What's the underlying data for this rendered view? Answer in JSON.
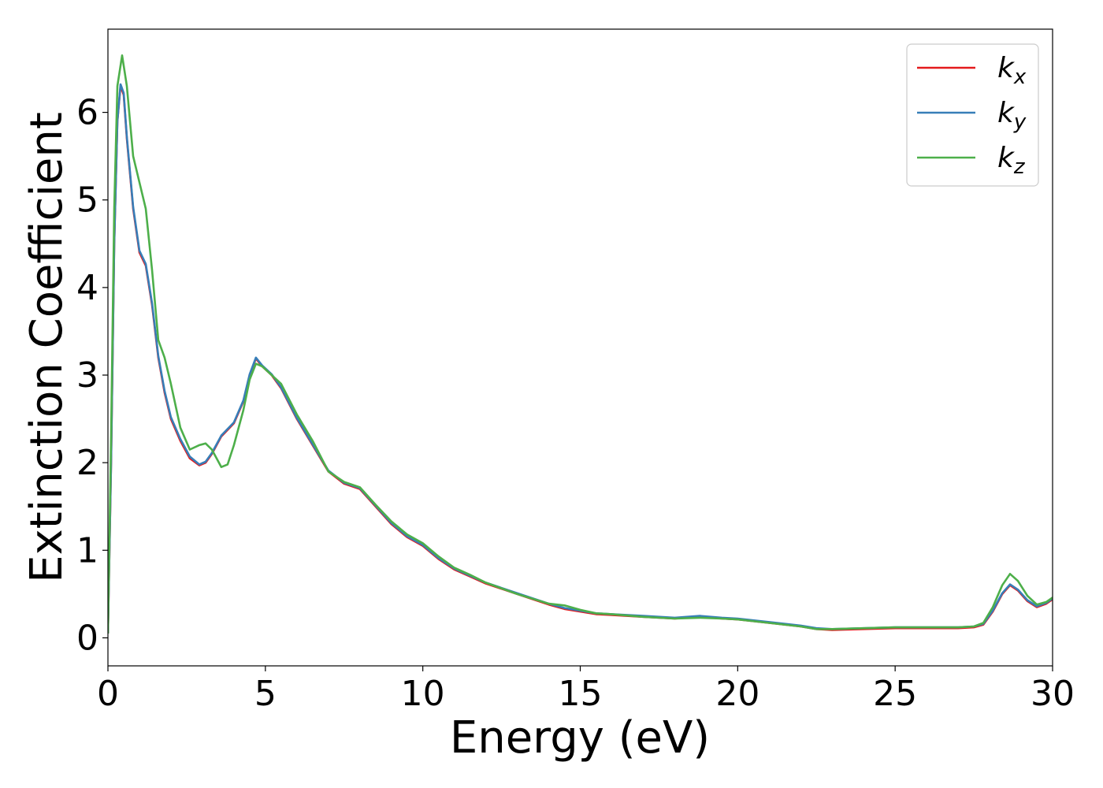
{
  "chart_data": {
    "type": "line",
    "title": "",
    "xlabel": "Energy (eV)",
    "ylabel": "Extinction Coefficient",
    "xlim": [
      0,
      30
    ],
    "ylim": [
      -0.32,
      6.95
    ],
    "xticks": [
      0,
      5,
      10,
      15,
      20,
      25,
      30
    ],
    "yticks": [
      0,
      1,
      2,
      3,
      4,
      5,
      6
    ],
    "xtick_labels": [
      "0",
      "5",
      "10",
      "15",
      "20",
      "25",
      "30"
    ],
    "ytick_labels": [
      "0",
      "1",
      "2",
      "3",
      "4",
      "5",
      "6"
    ],
    "grid": false,
    "legend_position": "top-right",
    "series": [
      {
        "name": "k_x",
        "label_main": "k",
        "label_sub": "x",
        "color": "#e41a1c",
        "points": [
          [
            0,
            0.05
          ],
          [
            0.1,
            2.0
          ],
          [
            0.2,
            4.5
          ],
          [
            0.3,
            5.9
          ],
          [
            0.4,
            6.3
          ],
          [
            0.5,
            6.2
          ],
          [
            0.6,
            5.7
          ],
          [
            0.8,
            4.9
          ],
          [
            1.0,
            4.4
          ],
          [
            1.2,
            4.25
          ],
          [
            1.4,
            3.8
          ],
          [
            1.6,
            3.2
          ],
          [
            1.8,
            2.8
          ],
          [
            2.0,
            2.5
          ],
          [
            2.3,
            2.25
          ],
          [
            2.6,
            2.05
          ],
          [
            2.9,
            1.97
          ],
          [
            3.1,
            2.0
          ],
          [
            3.3,
            2.1
          ],
          [
            3.6,
            2.3
          ],
          [
            4.0,
            2.45
          ],
          [
            4.3,
            2.7
          ],
          [
            4.5,
            3.0
          ],
          [
            4.7,
            3.19
          ],
          [
            4.9,
            3.1
          ],
          [
            5.2,
            3.0
          ],
          [
            5.5,
            2.85
          ],
          [
            6.0,
            2.5
          ],
          [
            6.5,
            2.2
          ],
          [
            7.0,
            1.9
          ],
          [
            7.5,
            1.76
          ],
          [
            8.0,
            1.7
          ],
          [
            8.5,
            1.5
          ],
          [
            9.0,
            1.3
          ],
          [
            9.5,
            1.15
          ],
          [
            10.0,
            1.05
          ],
          [
            10.5,
            0.9
          ],
          [
            11.0,
            0.78
          ],
          [
            11.5,
            0.7
          ],
          [
            12.0,
            0.62
          ],
          [
            13.0,
            0.5
          ],
          [
            14.0,
            0.38
          ],
          [
            14.5,
            0.33
          ],
          [
            15.0,
            0.3
          ],
          [
            15.5,
            0.27
          ],
          [
            16.0,
            0.26
          ],
          [
            17.0,
            0.24
          ],
          [
            18.0,
            0.22
          ],
          [
            18.8,
            0.24
          ],
          [
            19.5,
            0.22
          ],
          [
            20.0,
            0.21
          ],
          [
            21.0,
            0.17
          ],
          [
            22.0,
            0.13
          ],
          [
            22.5,
            0.1
          ],
          [
            23.0,
            0.09
          ],
          [
            24.0,
            0.1
          ],
          [
            25.0,
            0.11
          ],
          [
            26.0,
            0.11
          ],
          [
            27.0,
            0.11
          ],
          [
            27.5,
            0.12
          ],
          [
            27.8,
            0.15
          ],
          [
            28.1,
            0.3
          ],
          [
            28.4,
            0.5
          ],
          [
            28.65,
            0.6
          ],
          [
            28.9,
            0.54
          ],
          [
            29.2,
            0.42
          ],
          [
            29.5,
            0.35
          ],
          [
            29.8,
            0.39
          ],
          [
            30.0,
            0.44
          ]
        ]
      },
      {
        "name": "k_y",
        "label_main": "k",
        "label_sub": "y",
        "color": "#377eb8",
        "points": [
          [
            0,
            0.05
          ],
          [
            0.1,
            2.0
          ],
          [
            0.2,
            4.5
          ],
          [
            0.3,
            5.9
          ],
          [
            0.4,
            6.32
          ],
          [
            0.5,
            6.22
          ],
          [
            0.6,
            5.72
          ],
          [
            0.8,
            4.92
          ],
          [
            1.0,
            4.42
          ],
          [
            1.2,
            4.27
          ],
          [
            1.4,
            3.82
          ],
          [
            1.6,
            3.22
          ],
          [
            1.8,
            2.82
          ],
          [
            2.0,
            2.52
          ],
          [
            2.3,
            2.27
          ],
          [
            2.6,
            2.07
          ],
          [
            2.9,
            1.98
          ],
          [
            3.1,
            2.01
          ],
          [
            3.3,
            2.11
          ],
          [
            3.6,
            2.31
          ],
          [
            4.0,
            2.46
          ],
          [
            4.3,
            2.71
          ],
          [
            4.5,
            3.01
          ],
          [
            4.7,
            3.2
          ],
          [
            4.9,
            3.11
          ],
          [
            5.2,
            3.01
          ],
          [
            5.5,
            2.86
          ],
          [
            6.0,
            2.51
          ],
          [
            6.5,
            2.21
          ],
          [
            7.0,
            1.91
          ],
          [
            7.5,
            1.77
          ],
          [
            8.0,
            1.71
          ],
          [
            8.5,
            1.51
          ],
          [
            9.0,
            1.31
          ],
          [
            9.5,
            1.16
          ],
          [
            10.0,
            1.06
          ],
          [
            10.5,
            0.91
          ],
          [
            11.0,
            0.79
          ],
          [
            11.5,
            0.71
          ],
          [
            12.0,
            0.63
          ],
          [
            13.0,
            0.51
          ],
          [
            14.0,
            0.39
          ],
          [
            14.5,
            0.34
          ],
          [
            15.0,
            0.31
          ],
          [
            15.5,
            0.28
          ],
          [
            16.0,
            0.27
          ],
          [
            17.0,
            0.25
          ],
          [
            18.0,
            0.23
          ],
          [
            18.8,
            0.25
          ],
          [
            19.5,
            0.23
          ],
          [
            20.0,
            0.22
          ],
          [
            21.0,
            0.18
          ],
          [
            22.0,
            0.14
          ],
          [
            22.5,
            0.11
          ],
          [
            23.0,
            0.1
          ],
          [
            24.0,
            0.11
          ],
          [
            25.0,
            0.12
          ],
          [
            26.0,
            0.12
          ],
          [
            27.0,
            0.12
          ],
          [
            27.5,
            0.13
          ],
          [
            27.8,
            0.16
          ],
          [
            28.1,
            0.31
          ],
          [
            28.4,
            0.51
          ],
          [
            28.65,
            0.61
          ],
          [
            28.9,
            0.55
          ],
          [
            29.2,
            0.43
          ],
          [
            29.5,
            0.36
          ],
          [
            29.8,
            0.4
          ],
          [
            30.0,
            0.45
          ]
        ]
      },
      {
        "name": "k_z",
        "label_main": "k",
        "label_sub": "z",
        "color": "#4daf4a",
        "points": [
          [
            0,
            0.05
          ],
          [
            0.1,
            2.3
          ],
          [
            0.2,
            4.9
          ],
          [
            0.3,
            6.3
          ],
          [
            0.45,
            6.65
          ],
          [
            0.6,
            6.3
          ],
          [
            0.8,
            5.5
          ],
          [
            1.0,
            5.2
          ],
          [
            1.2,
            4.9
          ],
          [
            1.4,
            4.2
          ],
          [
            1.6,
            3.4
          ],
          [
            1.8,
            3.2
          ],
          [
            2.0,
            2.9
          ],
          [
            2.3,
            2.4
          ],
          [
            2.6,
            2.15
          ],
          [
            2.9,
            2.2
          ],
          [
            3.1,
            2.22
          ],
          [
            3.3,
            2.15
          ],
          [
            3.6,
            1.95
          ],
          [
            3.8,
            1.98
          ],
          [
            4.0,
            2.2
          ],
          [
            4.3,
            2.6
          ],
          [
            4.5,
            2.95
          ],
          [
            4.7,
            3.13
          ],
          [
            4.9,
            3.1
          ],
          [
            5.2,
            3.0
          ],
          [
            5.5,
            2.9
          ],
          [
            6.0,
            2.55
          ],
          [
            6.5,
            2.25
          ],
          [
            7.0,
            1.9
          ],
          [
            7.5,
            1.78
          ],
          [
            8.0,
            1.72
          ],
          [
            8.5,
            1.52
          ],
          [
            9.0,
            1.33
          ],
          [
            9.5,
            1.18
          ],
          [
            10.0,
            1.08
          ],
          [
            10.5,
            0.93
          ],
          [
            11.0,
            0.8
          ],
          [
            11.5,
            0.72
          ],
          [
            12.0,
            0.63
          ],
          [
            13.0,
            0.5
          ],
          [
            14.0,
            0.39
          ],
          [
            14.5,
            0.37
          ],
          [
            15.0,
            0.32
          ],
          [
            15.5,
            0.28
          ],
          [
            16.0,
            0.27
          ],
          [
            17.0,
            0.24
          ],
          [
            18.0,
            0.22
          ],
          [
            18.8,
            0.23
          ],
          [
            19.5,
            0.22
          ],
          [
            20.0,
            0.21
          ],
          [
            21.0,
            0.17
          ],
          [
            22.0,
            0.13
          ],
          [
            22.5,
            0.1
          ],
          [
            23.0,
            0.1
          ],
          [
            24.0,
            0.11
          ],
          [
            25.0,
            0.12
          ],
          [
            26.0,
            0.12
          ],
          [
            27.0,
            0.12
          ],
          [
            27.5,
            0.13
          ],
          [
            27.8,
            0.17
          ],
          [
            28.1,
            0.35
          ],
          [
            28.4,
            0.6
          ],
          [
            28.65,
            0.73
          ],
          [
            28.9,
            0.65
          ],
          [
            29.2,
            0.48
          ],
          [
            29.5,
            0.38
          ],
          [
            29.8,
            0.41
          ],
          [
            30.0,
            0.46
          ]
        ]
      }
    ]
  }
}
